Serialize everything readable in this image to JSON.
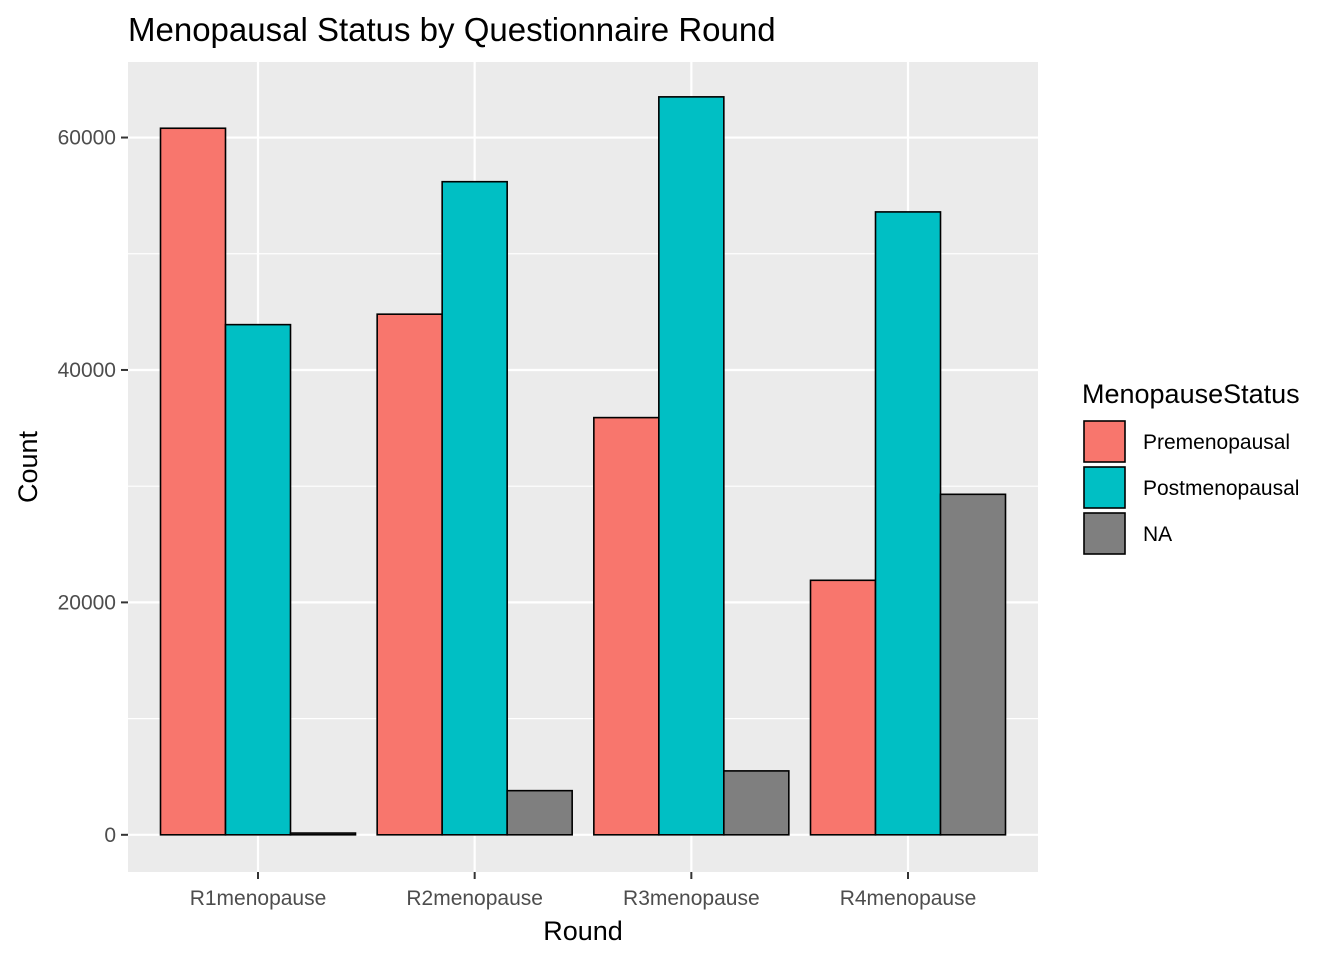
{
  "chart_data": {
    "type": "bar",
    "title": "Menopausal Status by Questionnaire Round",
    "xlabel": "Round",
    "ylabel": "Count",
    "categories": [
      "R1menopause",
      "R2menopause",
      "R3menopause",
      "R4menopause"
    ],
    "series": [
      {
        "name": "Premenopausal",
        "color": "#F8766D",
        "values": [
          60800,
          44800,
          35900,
          21900
        ]
      },
      {
        "name": "Postmenopausal",
        "color": "#00BFC4",
        "values": [
          43900,
          56200,
          63500,
          53600
        ]
      },
      {
        "name": "NA",
        "color": "#7F7F7F",
        "values": [
          150,
          3800,
          5500,
          29300
        ]
      }
    ],
    "ylim": [
      -3200,
      66500
    ],
    "yticks": [
      0,
      20000,
      40000,
      60000
    ],
    "ytick_labels": [
      "0",
      "20000",
      "40000",
      "60000"
    ],
    "grid": true,
    "legend": {
      "title": "MenopauseStatus",
      "placement": "right"
    },
    "panel_background": "#EBEBEB",
    "bar_outline": "#000000"
  }
}
